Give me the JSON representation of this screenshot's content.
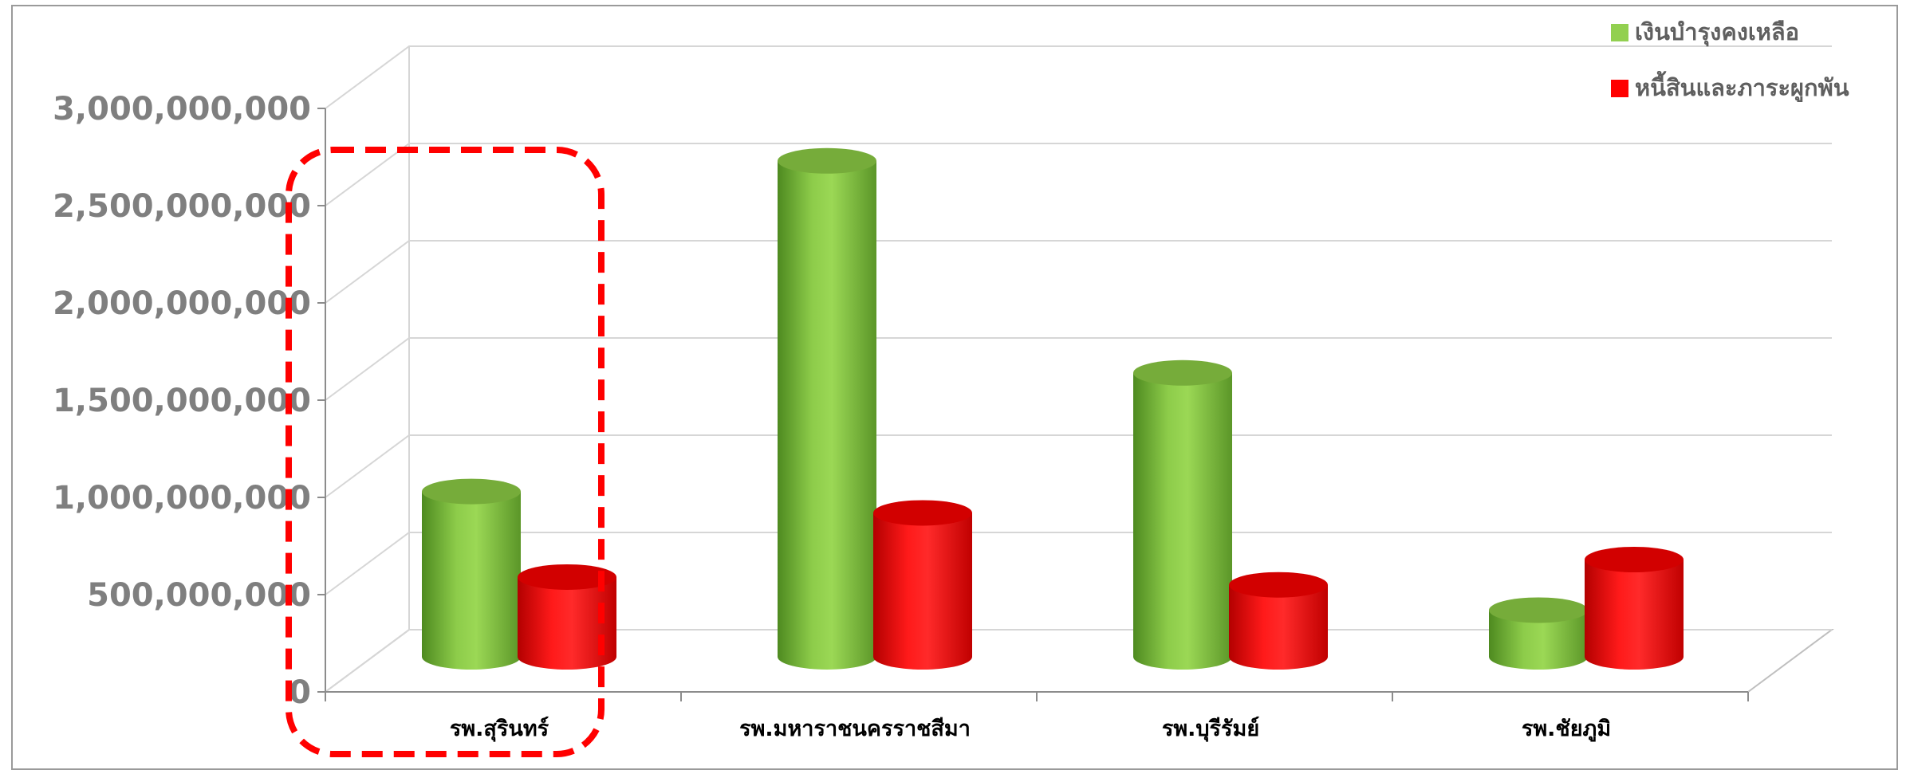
{
  "chart_data": {
    "type": "bar",
    "style": "3d-cylinder",
    "categories": [
      "รพ.สุรินทร์",
      "รพ.มหาราชนครราชสีมา",
      "รพ.บุรีรัมย์",
      "รพ.ชัยภูมิ"
    ],
    "series": [
      {
        "name": "เงินบำรุงคงเหลือ",
        "color": "#92d050",
        "values": [
          850000000,
          2550000000,
          1460000000,
          240000000
        ]
      },
      {
        "name": "หนี้สินและภาระผูกพัน",
        "color": "#ff0000",
        "values": [
          410000000,
          740000000,
          370000000,
          500000000
        ]
      }
    ],
    "yticks": [
      "0",
      "500,000,000",
      "1,000,000,000",
      "1,500,000,000",
      "2,000,000,000",
      "2,500,000,000",
      "3,000,000,000"
    ],
    "ylim": [
      0,
      3000000000
    ],
    "grid": true,
    "legend_position": "top-right",
    "highlight": {
      "category": "รพ.สุรินทร์",
      "style": "red dashed rounded box",
      "color": "#ff0000"
    }
  }
}
